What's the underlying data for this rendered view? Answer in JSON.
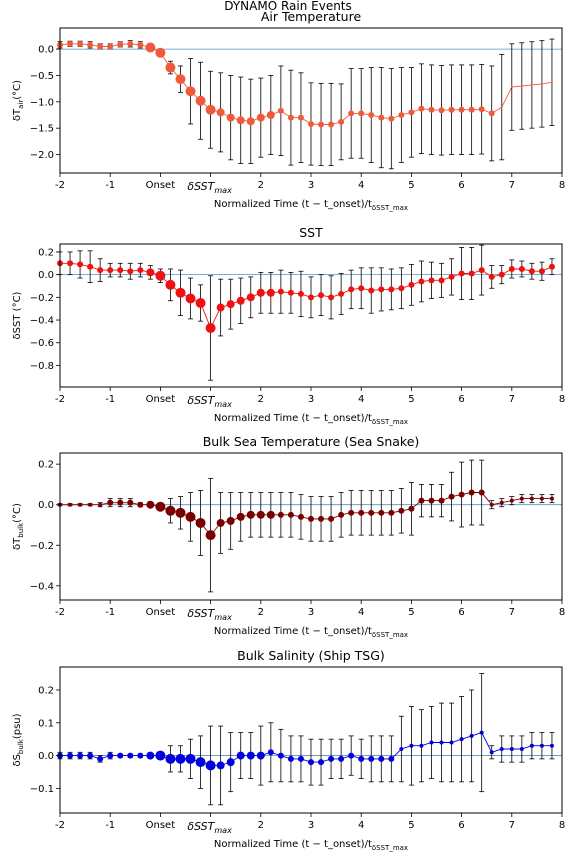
{
  "figure_title": "DYNAMO Rain Events",
  "chart_data": [
    {
      "type": "scatter",
      "title": "Air Temperature",
      "ylabel": "δT_air(°C)",
      "xlabel": "Normalized Time (t − t_onset)/t_δSST_max",
      "xlim": [
        -2,
        8
      ],
      "ylim": [
        -2.35,
        0.4
      ],
      "yticks": [
        0.0,
        -0.5,
        -1.0,
        -1.5,
        -2.0
      ],
      "ytick_labels": [
        "0.0",
        "−0.5",
        "−1.0",
        "−1.5",
        "−2.0"
      ],
      "xtick_labels": [
        "-2",
        "-1",
        "Onset",
        "δSST_max",
        "2",
        "3",
        "4",
        "5",
        "6",
        "7",
        "8"
      ],
      "color": "#f05a3c",
      "zero_line": true,
      "grid": false,
      "series": [
        {
          "x": [
            -2.0,
            -1.8,
            -1.6,
            -1.4,
            -1.2,
            -1.0,
            -0.8,
            -0.6,
            -0.4,
            -0.2,
            0.0,
            0.2,
            0.4,
            0.6,
            0.8,
            1.0,
            1.2,
            1.4,
            1.6,
            1.8,
            2.0,
            2.2,
            2.4,
            2.6,
            2.8,
            3.0,
            3.2,
            3.4,
            3.6,
            3.8,
            4.0,
            4.2,
            4.4,
            4.6,
            4.8,
            5.0,
            5.2,
            5.4,
            5.6,
            5.8,
            6.0,
            6.2,
            6.4,
            6.6,
            6.8,
            7.0,
            7.2,
            7.4,
            7.6,
            7.8
          ],
          "y": [
            0.08,
            0.1,
            0.1,
            0.08,
            0.05,
            0.05,
            0.09,
            0.1,
            0.08,
            0.03,
            -0.07,
            -0.35,
            -0.57,
            -0.8,
            -0.98,
            -1.15,
            -1.2,
            -1.3,
            -1.35,
            -1.37,
            -1.3,
            -1.25,
            -1.17,
            -1.3,
            -1.3,
            -1.42,
            -1.43,
            -1.43,
            -1.38,
            -1.22,
            -1.22,
            -1.25,
            -1.3,
            -1.32,
            -1.25,
            -1.2,
            -1.13,
            -1.15,
            -1.16,
            -1.15,
            -1.15,
            -1.15,
            -1.14,
            -1.22,
            -1.1,
            -0.72,
            -0.7,
            -0.68,
            -0.66,
            -0.63
          ],
          "err": [
            0.06,
            0.05,
            0.05,
            0.06,
            0.05,
            0.05,
            0.05,
            0.06,
            0.06,
            0.06,
            0.05,
            0.12,
            0.25,
            0.62,
            0.73,
            0.73,
            0.75,
            0.8,
            0.82,
            0.8,
            0.75,
            0.75,
            0.85,
            0.9,
            0.85,
            0.78,
            0.78,
            0.78,
            0.72,
            0.85,
            0.85,
            0.9,
            0.95,
            0.95,
            0.9,
            0.85,
            0.85,
            0.85,
            0.85,
            0.85,
            0.85,
            0.85,
            0.85,
            0.9,
            1.0,
            0.82,
            0.82,
            0.82,
            0.82,
            0.82
          ],
          "marker_size": [
            3,
            3,
            3,
            3,
            3,
            3,
            3,
            3,
            3,
            5,
            5,
            5,
            5,
            5,
            5,
            5,
            4,
            4,
            4,
            4,
            4,
            4,
            3,
            3,
            3,
            3,
            3,
            3,
            3,
            3,
            3,
            3,
            3,
            3,
            3,
            3,
            3,
            3,
            3,
            3,
            3,
            3,
            3,
            3,
            1,
            1,
            1,
            1,
            1,
            1
          ]
        }
      ]
    },
    {
      "type": "scatter",
      "title": "SST",
      "ylabel": "δSST (°C)",
      "xlabel": "Normalized Time (t − t_onset)/t_δSST_max",
      "xlim": [
        -2,
        8
      ],
      "ylim": [
        -0.99,
        0.27
      ],
      "yticks": [
        0.2,
        0.0,
        -0.2,
        -0.4,
        -0.6,
        -0.8
      ],
      "ytick_labels": [
        "0.2",
        "0.0",
        "−0.2",
        "−0.4",
        "−0.6",
        "−0.8"
      ],
      "xtick_labels": [
        "-2",
        "-1",
        "Onset",
        "δSST_max",
        "2",
        "3",
        "4",
        "5",
        "6",
        "7",
        "8"
      ],
      "color": "#ee1111",
      "zero_line": true,
      "grid": false,
      "series": [
        {
          "x": [
            -2.0,
            -1.8,
            -1.6,
            -1.4,
            -1.2,
            -1.0,
            -0.8,
            -0.6,
            -0.4,
            -0.2,
            0.0,
            0.2,
            0.4,
            0.6,
            0.8,
            1.0,
            1.2,
            1.4,
            1.6,
            1.8,
            2.0,
            2.2,
            2.4,
            2.6,
            2.8,
            3.0,
            3.2,
            3.4,
            3.6,
            3.8,
            4.0,
            4.2,
            4.4,
            4.6,
            4.8,
            5.0,
            5.2,
            5.4,
            5.6,
            5.8,
            6.0,
            6.2,
            6.4,
            6.6,
            6.8,
            7.0,
            7.2,
            7.4,
            7.6,
            7.8
          ],
          "y": [
            0.1,
            0.1,
            0.09,
            0.07,
            0.04,
            0.04,
            0.04,
            0.03,
            0.04,
            0.02,
            -0.01,
            -0.09,
            -0.16,
            -0.21,
            -0.25,
            -0.47,
            -0.29,
            -0.26,
            -0.23,
            -0.2,
            -0.16,
            -0.16,
            -0.15,
            -0.16,
            -0.17,
            -0.2,
            -0.18,
            -0.2,
            -0.17,
            -0.13,
            -0.12,
            -0.14,
            -0.13,
            -0.13,
            -0.12,
            -0.09,
            -0.06,
            -0.05,
            -0.05,
            -0.02,
            0.01,
            0.01,
            0.04,
            -0.02,
            0.0,
            0.05,
            0.05,
            0.03,
            0.03,
            0.07
          ],
          "err": [
            0.1,
            0.1,
            0.12,
            0.14,
            0.1,
            0.06,
            0.06,
            0.07,
            0.06,
            0.06,
            0.06,
            0.14,
            0.2,
            0.18,
            0.16,
            0.46,
            0.25,
            0.22,
            0.2,
            0.18,
            0.18,
            0.18,
            0.19,
            0.18,
            0.2,
            0.18,
            0.18,
            0.19,
            0.18,
            0.17,
            0.18,
            0.2,
            0.19,
            0.18,
            0.18,
            0.18,
            0.18,
            0.16,
            0.15,
            0.16,
            0.23,
            0.23,
            0.22,
            0.1,
            0.08,
            0.08,
            0.07,
            0.07,
            0.08,
            0.07
          ],
          "marker_size": [
            3,
            3,
            3,
            3,
            3,
            3,
            3,
            3,
            3,
            4,
            5,
            5,
            5,
            5,
            5,
            5,
            4,
            4,
            4,
            4,
            4,
            4,
            3,
            3,
            3,
            3,
            3,
            3,
            3,
            3,
            3,
            3,
            3,
            3,
            3,
            3,
            3,
            3,
            3,
            3,
            3,
            3,
            3,
            3,
            3,
            3,
            3,
            3,
            3,
            3
          ]
        }
      ]
    },
    {
      "type": "scatter",
      "title": "Bulk Sea Temperature (Sea Snake)",
      "ylabel": "δT_bulk(°C)",
      "xlabel": "Normalized Time (t − t_onset)/t_δSST_max",
      "xlim": [
        -2,
        8
      ],
      "ylim": [
        -0.47,
        0.255
      ],
      "yticks": [
        0.2,
        0.0,
        -0.2,
        -0.4
      ],
      "ytick_labels": [
        "0.2",
        "0.0",
        "−0.2",
        "−0.4"
      ],
      "xtick_labels": [
        "-2",
        "-1",
        "Onset",
        "δSST_max",
        "2",
        "3",
        "4",
        "5",
        "6",
        "7",
        "8"
      ],
      "color": "#7a0000",
      "zero_line": true,
      "grid": false,
      "series": [
        {
          "x": [
            -2.0,
            -1.8,
            -1.6,
            -1.4,
            -1.2,
            -1.0,
            -0.8,
            -0.6,
            -0.4,
            -0.2,
            0.0,
            0.2,
            0.4,
            0.6,
            0.8,
            1.0,
            1.2,
            1.4,
            1.6,
            1.8,
            2.0,
            2.2,
            2.4,
            2.6,
            2.8,
            3.0,
            3.2,
            3.4,
            3.6,
            3.8,
            4.0,
            4.2,
            4.4,
            4.6,
            4.8,
            5.0,
            5.2,
            5.4,
            5.6,
            5.8,
            6.0,
            6.2,
            6.4,
            6.6,
            6.8,
            7.0,
            7.2,
            7.4,
            7.6,
            7.8
          ],
          "y": [
            0.0,
            0.0,
            0.0,
            0.0,
            0.0,
            0.01,
            0.01,
            0.01,
            0.0,
            0.0,
            -0.01,
            -0.03,
            -0.04,
            -0.06,
            -0.09,
            -0.15,
            -0.09,
            -0.08,
            -0.06,
            -0.05,
            -0.05,
            -0.05,
            -0.05,
            -0.05,
            -0.06,
            -0.07,
            -0.07,
            -0.07,
            -0.05,
            -0.04,
            -0.04,
            -0.04,
            -0.04,
            -0.04,
            -0.03,
            -0.02,
            0.02,
            0.02,
            0.02,
            0.04,
            0.05,
            0.06,
            0.06,
            0.0,
            0.01,
            0.02,
            0.03,
            0.03,
            0.03,
            0.03
          ],
          "err": [
            0.005,
            0.005,
            0.005,
            0.005,
            0.01,
            0.02,
            0.02,
            0.02,
            0.01,
            0.01,
            0.01,
            0.06,
            0.08,
            0.12,
            0.16,
            0.28,
            0.15,
            0.14,
            0.12,
            0.11,
            0.11,
            0.11,
            0.11,
            0.11,
            0.11,
            0.11,
            0.11,
            0.11,
            0.11,
            0.11,
            0.11,
            0.11,
            0.11,
            0.11,
            0.11,
            0.13,
            0.08,
            0.08,
            0.08,
            0.12,
            0.16,
            0.16,
            0.16,
            0.02,
            0.02,
            0.02,
            0.02,
            0.02,
            0.02,
            0.02
          ],
          "marker_size": [
            2,
            2,
            2,
            2,
            2,
            3,
            3,
            3,
            3,
            4,
            5,
            5,
            5,
            5,
            5,
            5,
            4,
            4,
            4,
            4,
            4,
            4,
            3,
            3,
            3,
            3,
            3,
            3,
            3,
            3,
            3,
            3,
            3,
            3,
            3,
            3,
            3,
            3,
            3,
            3,
            3,
            3,
            3,
            2,
            2,
            2,
            2,
            2,
            2,
            2
          ]
        }
      ]
    },
    {
      "type": "scatter",
      "title": "Bulk Salinity (Ship TSG)",
      "ylabel": "δS_bulk(psu)",
      "xlabel": "Normalized Time (t − t_onset)/t_δSST_max",
      "xlim": [
        -2,
        8
      ],
      "ylim": [
        -0.175,
        0.27
      ],
      "yticks": [
        0.2,
        0.1,
        0.0,
        -0.1
      ],
      "ytick_labels": [
        "0.2",
        "0.1",
        "0.0",
        "−0.1"
      ],
      "xtick_labels": [
        "-2",
        "-1",
        "Onset",
        "δSST_max",
        "2",
        "3",
        "4",
        "5",
        "6",
        "7",
        "8"
      ],
      "color": "#0000dd",
      "zero_line": true,
      "grid": false,
      "series": [
        {
          "x": [
            -2.0,
            -1.8,
            -1.6,
            -1.4,
            -1.2,
            -1.0,
            -0.8,
            -0.6,
            -0.4,
            -0.2,
            0.0,
            0.2,
            0.4,
            0.6,
            0.8,
            1.0,
            1.2,
            1.4,
            1.6,
            1.8,
            2.0,
            2.2,
            2.4,
            2.6,
            2.8,
            3.0,
            3.2,
            3.4,
            3.6,
            3.8,
            4.0,
            4.2,
            4.4,
            4.6,
            4.8,
            5.0,
            5.2,
            5.4,
            5.6,
            5.8,
            6.0,
            6.2,
            6.4,
            6.6,
            6.8,
            7.0,
            7.2,
            7.4,
            7.6,
            7.8
          ],
          "y": [
            0.0,
            0.0,
            0.0,
            0.0,
            -0.01,
            0.0,
            0.0,
            0.0,
            0.0,
            0.0,
            0.0,
            -0.01,
            -0.01,
            -0.01,
            -0.02,
            -0.03,
            -0.03,
            -0.02,
            0.0,
            0.0,
            0.0,
            0.01,
            0.0,
            -0.01,
            -0.01,
            -0.02,
            -0.02,
            -0.01,
            -0.01,
            0.0,
            -0.01,
            -0.01,
            -0.01,
            -0.01,
            0.02,
            0.03,
            0.03,
            0.04,
            0.04,
            0.04,
            0.05,
            0.06,
            0.07,
            0.01,
            0.02,
            0.02,
            0.02,
            0.03,
            0.03,
            0.03
          ],
          "err": [
            0.01,
            0.01,
            0.01,
            0.01,
            0.01,
            0.01,
            0.005,
            0.005,
            0.005,
            0.005,
            0.005,
            0.04,
            0.04,
            0.06,
            0.08,
            0.12,
            0.12,
            0.09,
            0.07,
            0.07,
            0.09,
            0.09,
            0.08,
            0.07,
            0.07,
            0.07,
            0.07,
            0.06,
            0.06,
            0.06,
            0.06,
            0.07,
            0.07,
            0.07,
            0.1,
            0.12,
            0.11,
            0.11,
            0.12,
            0.12,
            0.13,
            0.14,
            0.18,
            0.02,
            0.04,
            0.04,
            0.04,
            0.04,
            0.04,
            0.04
          ],
          "marker_size": [
            3,
            3,
            3,
            3,
            3,
            3,
            3,
            3,
            3,
            4,
            5,
            5,
            5,
            5,
            5,
            5,
            4,
            4,
            4,
            4,
            4,
            3,
            3,
            3,
            3,
            3,
            3,
            3,
            3,
            3,
            3,
            3,
            3,
            3,
            2,
            2,
            2,
            2,
            2,
            2,
            2,
            2,
            2,
            2,
            2,
            2,
            2,
            2,
            2,
            2
          ]
        }
      ]
    }
  ]
}
